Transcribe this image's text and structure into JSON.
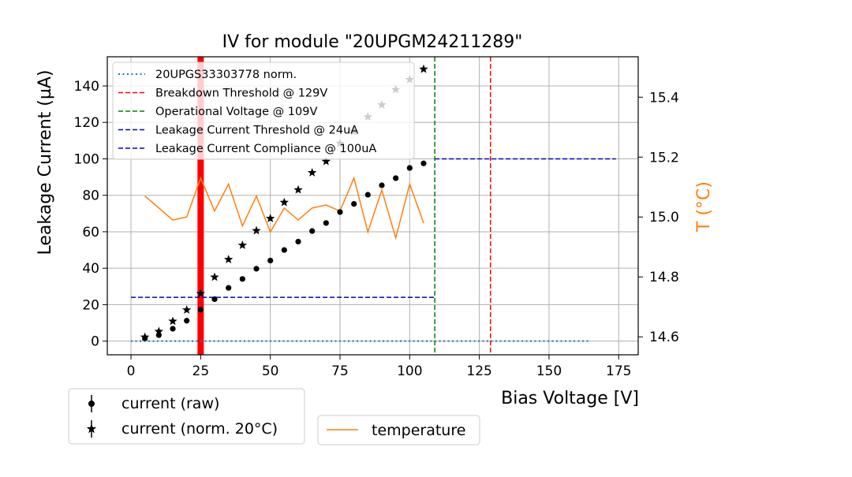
{
  "chart_data": {
    "type": "scatter",
    "title": "IV for module \"20UPGM24211289\"",
    "xlabel": "Bias Voltage [V]",
    "ylabel": "Leakage Current (µA)",
    "y2label": "T (°C)",
    "xlim": [
      -8.5,
      182
    ],
    "ylim": [
      -7.5,
      156
    ],
    "y2lim": [
      14.54,
      15.535
    ],
    "xticks": [
      0,
      25,
      50,
      75,
      100,
      125,
      150,
      175
    ],
    "yticks": [
      0,
      20,
      40,
      60,
      80,
      100,
      120,
      140
    ],
    "y2ticks": [
      14.6,
      14.8,
      15.0,
      15.2,
      15.4
    ],
    "grid": true,
    "colors": {
      "raw": "#000000",
      "norm": "#000000",
      "temperature": "#ff7f0e",
      "reference": "#1f77b4",
      "breakdown": "#ff0000",
      "operational": "#008000",
      "threshold": "#0000cc",
      "compliance": "#0000cc",
      "red_band": "#ff0000"
    },
    "series": [
      {
        "name": "current (raw)",
        "key": "raw",
        "marker": "dot",
        "x": [
          5,
          10,
          15,
          20,
          25,
          30,
          35,
          40,
          45,
          50,
          55,
          60,
          65,
          70,
          75,
          80,
          85,
          90,
          95,
          100,
          105
        ],
        "values": [
          1.6,
          3.3,
          6.8,
          11.2,
          17.3,
          23.0,
          29.2,
          34.1,
          39.7,
          44.2,
          50.0,
          54.6,
          60.4,
          64.8,
          70.8,
          75.3,
          80.3,
          85.5,
          89.4,
          95.0,
          97.5
        ]
      },
      {
        "name": "current (norm. 20°C)",
        "key": "norm",
        "marker": "star",
        "x": [
          5,
          10,
          15,
          20,
          25,
          30,
          35,
          40,
          45,
          50,
          55,
          60,
          65,
          70,
          75,
          80,
          85,
          90,
          95,
          100,
          105
        ],
        "values": [
          2.2,
          5.3,
          10.9,
          17.1,
          26.1,
          35.1,
          44.8,
          52.6,
          60.6,
          67.3,
          76.1,
          83.0,
          92.4,
          98.6,
          108.5,
          115.0,
          123.0,
          129.6,
          138.0,
          143.5,
          149.2
        ]
      },
      {
        "name": "temperature",
        "key": "temperature",
        "axis": "right",
        "x": [
          5,
          10,
          15,
          20,
          25,
          30,
          35,
          40,
          45,
          50,
          55,
          60,
          65,
          70,
          75,
          80,
          85,
          90,
          95,
          100,
          105
        ],
        "values": [
          15.07,
          15.03,
          14.99,
          15.0,
          15.13,
          15.02,
          15.11,
          14.97,
          15.07,
          14.95,
          15.03,
          14.99,
          15.03,
          15.04,
          15.02,
          15.13,
          14.95,
          15.09,
          14.93,
          15.11,
          14.98
        ]
      }
    ],
    "reference_line": {
      "label": "20UPGS33303778 norm.",
      "x": [
        0,
        165
      ],
      "y": 0
    },
    "vlines": [
      {
        "key": "breakdown",
        "label": "Breakdown Threshold @ 129V",
        "x": 129
      },
      {
        "key": "operational",
        "label": "Operational Voltage @ 109V",
        "x": 109
      }
    ],
    "hlines": [
      {
        "key": "threshold",
        "label": "Leakage Current Threshold @ 24uA",
        "y": 24,
        "x": [
          0,
          109
        ]
      },
      {
        "key": "compliance",
        "label": "Leakage Current Compliance @ 100uA",
        "y": 100,
        "x": [
          109,
          174
        ]
      }
    ],
    "red_band": {
      "x": 25
    },
    "legend_main": [
      {
        "key": "reference",
        "label": "20UPGS33303778 norm."
      },
      {
        "key": "breakdown",
        "label": "Breakdown Threshold @ 129V"
      },
      {
        "key": "operational",
        "label": "Operational Voltage @ 109V"
      },
      {
        "key": "threshold",
        "label": "Leakage Current Threshold @ 24uA"
      },
      {
        "key": "compliance",
        "label": "Leakage Current Compliance @ 100uA"
      }
    ],
    "legend_current": [
      {
        "key": "raw",
        "label": "current (raw)"
      },
      {
        "key": "norm",
        "label": "current (norm. 20°C)"
      }
    ],
    "legend_temperature": [
      {
        "key": "temperature",
        "label": "temperature"
      }
    ]
  }
}
